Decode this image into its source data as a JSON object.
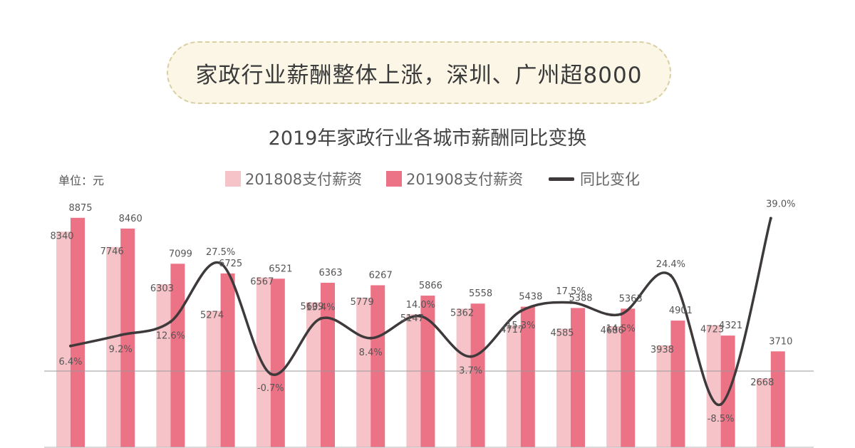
{
  "banner": {
    "text": "家政行业薪酬整体上涨，深圳、广州超8000"
  },
  "unit": "单位：元",
  "legend": {
    "series_a": "201808支付薪资",
    "series_b": "201908支付薪资",
    "series_c": "同比变化"
  },
  "colors": {
    "series_a": "#f6c3c8",
    "series_b": "#ec7286",
    "line": "#3e3a3b",
    "banner_bg": "#fbf6e6"
  },
  "chart_data": {
    "type": "bar",
    "title": "2019年家政行业各城市薪酬同比变换",
    "xlabel": "",
    "ylabel": "",
    "series": [
      {
        "name": "201808支付薪资",
        "values": [
          8340,
          7746,
          6303,
          5274,
          6567,
          5609,
          5779,
          5147,
          5362,
          4717,
          4585,
          4686,
          3938,
          4723,
          2668
        ]
      },
      {
        "name": "201908支付薪资",
        "values": [
          8875,
          8460,
          7099,
          6725,
          6521,
          6363,
          6267,
          5866,
          5558,
          5438,
          5388,
          5363,
          4901,
          4321,
          3710
        ]
      },
      {
        "name": "同比变化",
        "type": "line",
        "values": [
          6.4,
          9.2,
          12.6,
          27.5,
          -0.7,
          13.4,
          8.4,
          14.0,
          3.7,
          15.3,
          17.5,
          14.5,
          24.4,
          -8.5,
          39.0
        ],
        "labels": [
          "6.4%",
          "9.2%",
          "12.6%",
          "27.5%",
          "-0.7%",
          "13.4%",
          "8.4%",
          "14.0%",
          "3.7%",
          "15.3%",
          "17.5%",
          "14.5%",
          "24.4%",
          "-8.5%",
          "39.0%"
        ]
      }
    ],
    "grid": false
  }
}
